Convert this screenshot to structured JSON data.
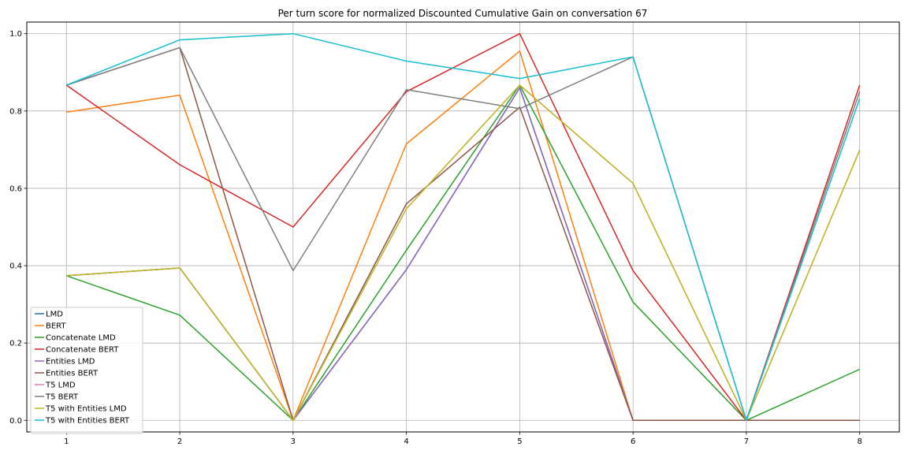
{
  "chart_data": {
    "type": "line",
    "title": "Per turn score for normalized Discounted Cumulative Gain on conversation 67",
    "xlabel": "",
    "ylabel": "",
    "x": [
      1,
      2,
      3,
      4,
      5,
      6,
      7,
      8
    ],
    "xlim": [
      0.65,
      8.35
    ],
    "ylim": [
      -0.03,
      1.03
    ],
    "xticks": [
      "1",
      "2",
      "3",
      "4",
      "5",
      "6",
      "7",
      "8"
    ],
    "yticks": [
      "0.0",
      "0.2",
      "0.4",
      "0.6",
      "0.8",
      "1.0"
    ],
    "grid": true,
    "legend_position": "lower-left",
    "series": [
      {
        "name": "LMD",
        "color": "#1f77b4",
        "values": [
          0.374,
          0.394,
          0.0,
          0.39,
          0.86,
          0.0,
          0.0,
          0.0
        ]
      },
      {
        "name": "BERT",
        "color": "#ff7f0e",
        "values": [
          0.797,
          0.841,
          0.0,
          0.715,
          0.955,
          0.0,
          0.0,
          0.0
        ]
      },
      {
        "name": "Concatenate LMD",
        "color": "#2ca02c",
        "values": [
          0.374,
          0.272,
          0.0,
          0.44,
          0.867,
          0.306,
          0.0,
          0.132
        ]
      },
      {
        "name": "Concatenate BERT",
        "color": "#d62728",
        "values": [
          0.867,
          0.661,
          0.5,
          0.85,
          1.0,
          0.387,
          0.0,
          0.867
        ]
      },
      {
        "name": "Entities LMD",
        "color": "#9467bd",
        "values": [
          0.374,
          0.394,
          0.0,
          0.39,
          0.86,
          0.0,
          0.0,
          0.0
        ]
      },
      {
        "name": "Entities BERT",
        "color": "#8c564b",
        "values": [
          0.867,
          0.964,
          0.0,
          0.56,
          0.81,
          0.0,
          0.0,
          0.0
        ]
      },
      {
        "name": "T5 LMD",
        "color": "#e377c2",
        "values": [
          0.374,
          0.394,
          0.0,
          0.547,
          0.867,
          0.613,
          0.0,
          0.699
        ]
      },
      {
        "name": "T5 BERT",
        "color": "#7f7f7f",
        "values": [
          0.867,
          0.964,
          0.387,
          0.855,
          0.806,
          0.94,
          0.0,
          0.85
        ]
      },
      {
        "name": "T5 with Entities LMD",
        "color": "#bcbd22",
        "values": [
          0.374,
          0.394,
          0.0,
          0.547,
          0.867,
          0.613,
          0.0,
          0.699
        ]
      },
      {
        "name": "T5 with Entities BERT",
        "color": "#17becf",
        "values": [
          0.867,
          0.984,
          1.0,
          0.929,
          0.884,
          0.94,
          0.0,
          0.832
        ]
      }
    ]
  }
}
